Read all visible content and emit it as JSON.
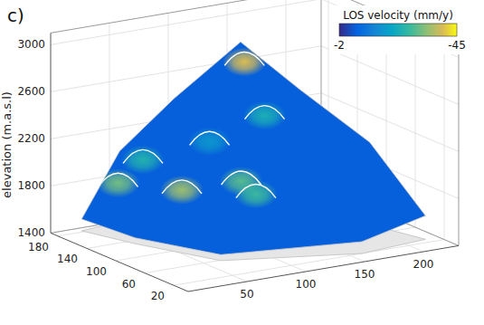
{
  "chart_data": {
    "type": "surface3d",
    "panel_label": "c)",
    "zlabel": "elevation (m.a.s.l)",
    "xlim": [
      0,
      230
    ],
    "xticks": [
      50,
      100,
      150,
      200
    ],
    "ylim": [
      0,
      190
    ],
    "yticks": [
      20,
      60,
      100,
      140,
      180
    ],
    "zlim": [
      1400,
      3100
    ],
    "zticks": [
      1400,
      1800,
      2200,
      2600,
      3000
    ],
    "grid": true,
    "colorbar": {
      "label": "LOS velocity (mm/y)",
      "range": [
        -2,
        -45
      ],
      "ticks": [
        -2,
        -45
      ]
    },
    "surface_velocity": -8,
    "surface_outline": [
      [
        22,
        183,
        1500
      ],
      [
        58,
        189,
        2000
      ],
      [
        82,
        153,
        2500
      ],
      [
        111,
        108,
        3050
      ],
      [
        138,
        70,
        2700
      ],
      [
        206,
        84,
        2100
      ],
      [
        219,
        28,
        1600
      ],
      [
        160,
        20,
        1500
      ],
      [
        64,
        59,
        1450
      ],
      [
        36,
        132,
        1450
      ]
    ],
    "hotspots": [
      {
        "x": 45,
        "y": 170,
        "z": 1800,
        "velocity": -32
      },
      {
        "x": 60,
        "y": 160,
        "z": 2000,
        "velocity": -25
      },
      {
        "x": 74,
        "y": 129,
        "z": 1800,
        "velocity": -35
      },
      {
        "x": 106,
        "y": 99,
        "z": 1900,
        "velocity": -30
      },
      {
        "x": 113,
        "y": 90,
        "z": 1800,
        "velocity": -28
      },
      {
        "x": 110,
        "y": 101,
        "z": 2900,
        "velocity": -40
      },
      {
        "x": 113,
        "y": 78,
        "z": 2500,
        "velocity": -24
      },
      {
        "x": 76,
        "y": 94,
        "z": 2300,
        "velocity": -18
      }
    ]
  }
}
